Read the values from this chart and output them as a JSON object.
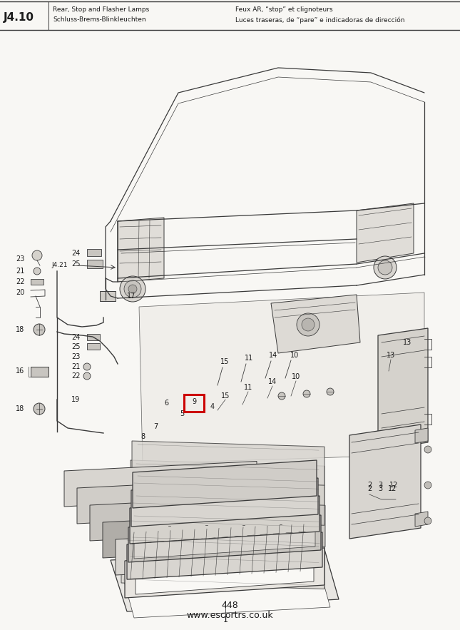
{
  "bg_color": "#f8f7f4",
  "page_color": "#f9f8f5",
  "title_page": "J4.10",
  "header_left_line1": "Rear, Stop and Flasher Lamps",
  "header_left_line2": "Schluss-Brems-Blinkleuchten",
  "header_right_line1": "Feux AR, “stop” et clignoteurs",
  "header_right_line2": "Luces traseras, de “pare” e indicadoras de dirección",
  "footer_num": "448",
  "footer_url": "www.escortrs.co.uk",
  "highlight_box_color": "#cc0000",
  "line_color": "#3a3a3a",
  "text_color": "#1a1a1a",
  "figsize": [
    6.45,
    8.83
  ],
  "dpi": 100
}
